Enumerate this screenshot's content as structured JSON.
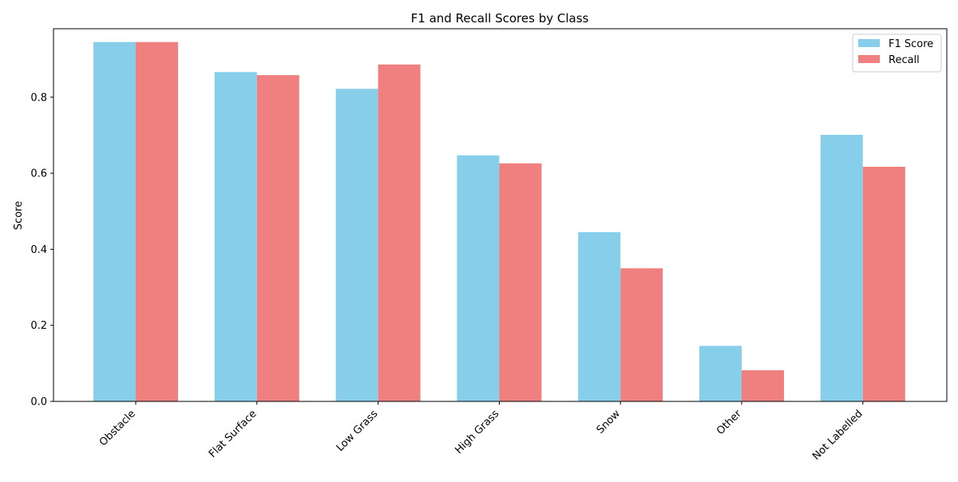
{
  "chart_data": {
    "type": "bar",
    "title": "F1 and Recall Scores by Class",
    "xlabel": "",
    "ylabel": "Score",
    "categories": [
      "Obstacle",
      "Flat Surface",
      "Low Grass",
      "High Grass",
      "Snow",
      "Other",
      "Not Labelled"
    ],
    "series": [
      {
        "name": "F1 Score",
        "color": "#87ceeb",
        "values": [
          0.945,
          0.866,
          0.822,
          0.647,
          0.445,
          0.146,
          0.701
        ]
      },
      {
        "name": "Recall",
        "color": "#f08080",
        "values": [
          0.945,
          0.858,
          0.886,
          0.626,
          0.35,
          0.082,
          0.617
        ]
      }
    ],
    "ylim": [
      0,
      0.98
    ],
    "yticks": [
      0.0,
      0.2,
      0.4,
      0.6,
      0.8
    ],
    "ytick_labels": [
      "0.0",
      "0.2",
      "0.4",
      "0.6",
      "0.8"
    ],
    "grid": false,
    "legend_position": "top-right"
  }
}
